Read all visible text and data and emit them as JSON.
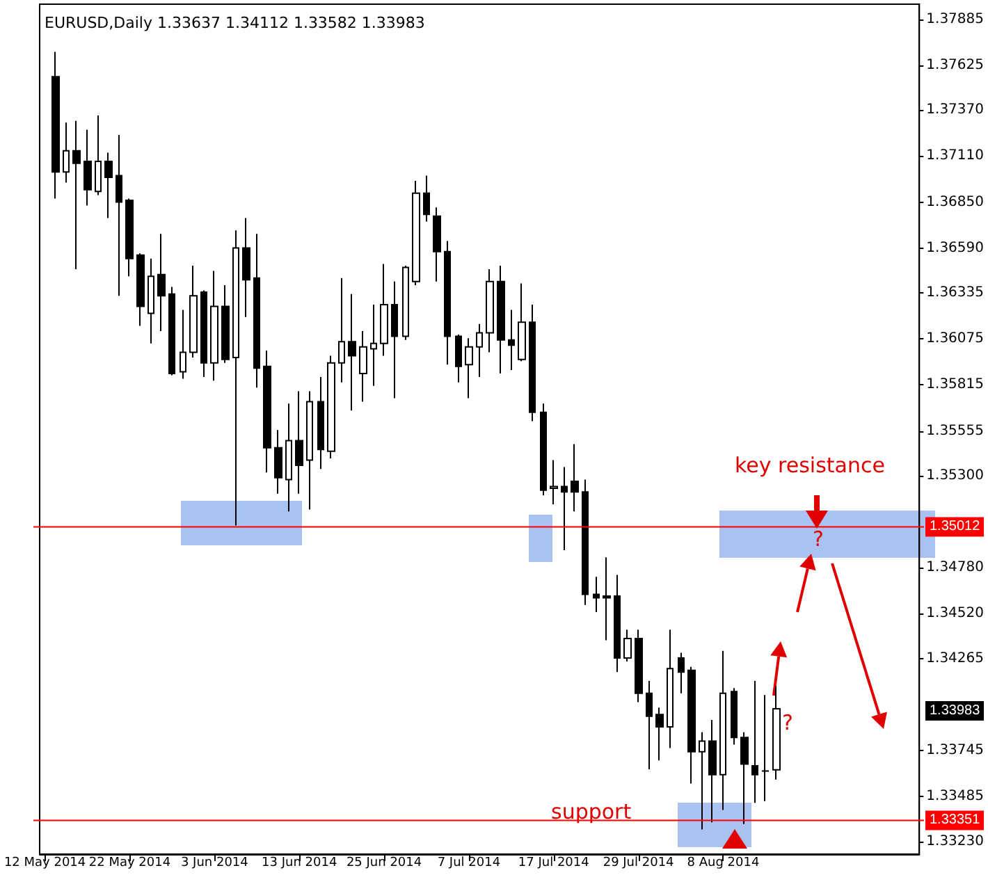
{
  "chart_data": {
    "type": "candlestick",
    "title": "EURUSD,Daily 1.33637 1.34112 1.33582 1.33983",
    "categories": [
      "12 May 2014",
      null,
      null,
      null,
      null,
      null,
      null,
      null,
      "22 May 2014",
      null,
      null,
      null,
      null,
      null,
      null,
      null,
      "3 Jun 2014",
      null,
      null,
      null,
      null,
      null,
      null,
      null,
      "13 Jun 2014",
      null,
      null,
      null,
      null,
      null,
      null,
      null,
      "25 Jun 2014",
      null,
      null,
      null,
      null,
      null,
      null,
      null,
      "7 Jul 2014",
      null,
      null,
      null,
      null,
      null,
      null,
      null,
      "17 Jul 2014",
      null,
      null,
      null,
      null,
      null,
      null,
      null,
      "29 Jul 2014",
      null,
      null,
      null,
      null,
      null,
      null,
      null,
      "8 Aug 2014",
      null,
      null,
      null,
      null,
      null,
      null,
      null,
      null,
      null,
      null,
      null,
      null,
      null,
      null,
      null,
      null,
      null,
      null
    ],
    "ohlc": [
      null,
      [
        1.3756,
        1.377,
        1.3687,
        1.3702
      ],
      [
        1.3702,
        1.373,
        1.3696,
        1.3714
      ],
      [
        1.3714,
        1.3731,
        1.3647,
        1.3707
      ],
      [
        1.3708,
        1.3726,
        1.3683,
        1.3692
      ],
      [
        1.3691,
        1.3734,
        1.3689,
        1.3708
      ],
      [
        1.3708,
        1.3713,
        1.3676,
        1.3699
      ],
      [
        1.37,
        1.3723,
        1.3632,
        1.3685
      ],
      [
        1.3686,
        1.3687,
        1.3643,
        1.3653
      ],
      [
        1.3655,
        1.3656,
        1.3615,
        1.3626
      ],
      [
        1.3622,
        1.3653,
        1.3605,
        1.3643
      ],
      [
        1.3644,
        1.3667,
        1.3612,
        1.3632
      ],
      [
        1.3633,
        1.3637,
        1.3587,
        1.3588
      ],
      [
        1.3589,
        1.3624,
        1.3585,
        1.36
      ],
      [
        1.36,
        1.3649,
        1.3597,
        1.3632
      ],
      [
        1.3634,
        1.3635,
        1.3586,
        1.3594
      ],
      [
        1.3594,
        1.3646,
        1.3584,
        1.3626
      ],
      [
        1.3626,
        1.3638,
        1.3594,
        1.3596
      ],
      [
        1.3597,
        1.3669,
        1.3502,
        1.3659
      ],
      [
        1.3659,
        1.3676,
        1.362,
        1.3641
      ],
      [
        1.3642,
        1.3667,
        1.358,
        1.3591
      ],
      [
        1.3592,
        1.3601,
        1.3532,
        1.3546
      ],
      [
        1.3546,
        1.3556,
        1.352,
        1.3529
      ],
      [
        1.3528,
        1.3571,
        1.351,
        1.355
      ],
      [
        1.355,
        1.3578,
        1.352,
        1.3536
      ],
      [
        1.3539,
        1.3578,
        1.3511,
        1.3572
      ],
      [
        1.3572,
        1.3586,
        1.3534,
        1.3545
      ],
      [
        1.3544,
        1.3598,
        1.354,
        1.3594
      ],
      [
        1.3594,
        1.3642,
        1.3583,
        1.3606
      ],
      [
        1.3606,
        1.3633,
        1.3567,
        1.3598
      ],
      [
        1.3588,
        1.3612,
        1.3572,
        1.3603
      ],
      [
        1.3602,
        1.3627,
        1.3581,
        1.3605
      ],
      [
        1.3605,
        1.365,
        1.3598,
        1.3627
      ],
      [
        1.3627,
        1.364,
        1.3574,
        1.3609
      ],
      [
        1.3609,
        1.3649,
        1.3607,
        1.3648
      ],
      [
        1.364,
        1.3697,
        1.3638,
        1.369
      ],
      [
        1.369,
        1.37,
        1.3674,
        1.3678
      ],
      [
        1.3677,
        1.3682,
        1.364,
        1.3657
      ],
      [
        1.3657,
        1.3663,
        1.3593,
        1.3609
      ],
      [
        1.3609,
        1.361,
        1.3583,
        1.3592
      ],
      [
        1.3593,
        1.3608,
        1.3574,
        1.3603
      ],
      [
        1.3603,
        1.3616,
        1.3586,
        1.3611
      ],
      [
        1.3611,
        1.3647,
        1.36,
        1.364
      ],
      [
        1.364,
        1.3649,
        1.3588,
        1.3607
      ],
      [
        1.3607,
        1.3624,
        1.359,
        1.3604
      ],
      [
        1.3596,
        1.3639,
        1.3595,
        1.3617
      ],
      [
        1.3617,
        1.3627,
        1.3561,
        1.3566
      ],
      [
        1.3566,
        1.3571,
        1.3519,
        1.3522
      ],
      [
        1.3523,
        1.3539,
        1.3514,
        1.3524
      ],
      [
        1.3524,
        1.3535,
        1.3488,
        1.3521
      ],
      [
        1.3527,
        1.3548,
        1.351,
        1.3521
      ],
      [
        1.3521,
        1.3528,
        1.3457,
        1.3463
      ],
      [
        1.3463,
        1.3473,
        1.3453,
        1.3461
      ],
      [
        1.3462,
        1.3484,
        1.3437,
        1.3461
      ],
      [
        1.3462,
        1.3474,
        1.3419,
        1.3427
      ],
      [
        1.3427,
        1.3443,
        1.3425,
        1.3438
      ],
      [
        1.3438,
        1.3443,
        1.3402,
        1.3407
      ],
      [
        1.3407,
        1.3414,
        1.3364,
        1.3394
      ],
      [
        1.3395,
        1.3399,
        1.3369,
        1.3388
      ],
      [
        1.3388,
        1.3443,
        1.3376,
        1.3421
      ],
      [
        1.3427,
        1.343,
        1.3407,
        1.3419
      ],
      [
        1.342,
        1.3422,
        1.3356,
        1.3374
      ],
      [
        1.3374,
        1.3385,
        1.333,
        1.338
      ],
      [
        1.338,
        1.3392,
        1.3334,
        1.3361
      ],
      [
        1.3361,
        1.3431,
        1.3341,
        1.3407
      ],
      [
        1.3408,
        1.341,
        1.3378,
        1.3382
      ],
      [
        1.3382,
        1.3385,
        1.3333,
        1.3367
      ],
      [
        1.3366,
        1.3414,
        1.3345,
        1.3361
      ],
      [
        1.3363,
        1.3406,
        1.3346,
        1.3363
      ],
      [
        1.33637,
        1.34112,
        1.33582,
        1.33983
      ],
      null,
      null,
      null,
      null,
      null,
      null,
      null,
      null,
      null,
      null,
      null,
      null,
      null
    ],
    "ylim": [
      1.3316,
      1.3797
    ],
    "yticks": [
      1.37885,
      1.37625,
      {
        "value": 1.3737,
        "label": "1.37370"
      },
      {
        "value": 1.3711,
        "label": "1.37110"
      },
      {
        "value": 1.3685,
        "label": "1.36850"
      },
      {
        "value": 1.3659,
        "label": "1.36590"
      },
      1.36335,
      1.36075,
      1.35815,
      1.35555,
      {
        "value": 1.353,
        "label": "1.35300"
      },
      {
        "value": 1.3478,
        "label": "1.34780"
      },
      {
        "value": 1.3452,
        "label": "1.34520"
      },
      1.34265,
      1.33745,
      1.33485,
      {
        "value": 1.3323,
        "label": "1.33230"
      }
    ],
    "ref_lines": [
      {
        "axis": "y",
        "value": 1.35012,
        "label": "1.35012",
        "color": "#ff0000"
      },
      {
        "axis": "y",
        "value": 1.33351,
        "label": "1.33351",
        "color": "#ff0000"
      }
    ],
    "annotations": [
      "key resistance",
      "?",
      "?",
      "support",
      "1.33983"
    ],
    "grid": false
  }
}
